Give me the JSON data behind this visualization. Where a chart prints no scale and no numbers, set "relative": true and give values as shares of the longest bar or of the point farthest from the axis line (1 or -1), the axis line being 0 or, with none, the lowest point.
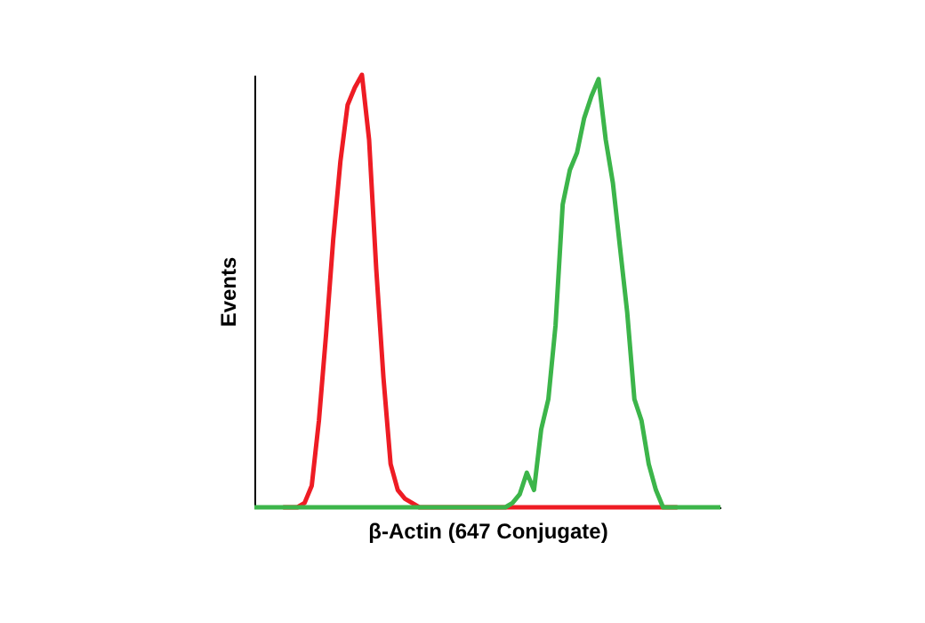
{
  "chart_data": {
    "type": "line",
    "relative": true,
    "xlabel": "β-Actin (647 Conjugate)",
    "ylabel": "Events",
    "tick_labels": false,
    "grid": false,
    "legend": false,
    "categories": [
      null,
      null,
      null,
      null,
      null,
      null,
      null,
      null,
      null,
      null,
      null,
      null,
      null,
      null,
      null,
      null,
      null,
      null,
      null,
      null,
      null,
      null,
      null,
      null,
      null,
      null,
      null,
      null,
      null,
      null,
      null,
      null,
      null,
      null,
      null,
      null,
      null,
      null,
      null,
      null,
      null,
      null,
      null,
      null,
      null,
      null,
      null,
      null,
      null,
      null,
      null,
      null,
      null,
      null,
      null,
      null,
      null,
      null,
      null,
      null,
      null,
      null,
      null,
      null,
      null,
      null
    ],
    "series": [
      {
        "color": "#ee1c24",
        "values": [
          null,
          null,
          null,
          null,
          0,
          0,
          0,
          0.01,
          0.05,
          0.2,
          0.4,
          0.62,
          0.8,
          0.93,
          0.97,
          1,
          0.85,
          0.55,
          0.3,
          0.1,
          0.04,
          0.02,
          0.01,
          0,
          0,
          0,
          0,
          0,
          0,
          0,
          0,
          0,
          0,
          0,
          0,
          0,
          0,
          0,
          0,
          0,
          0,
          0,
          0,
          0,
          0,
          0,
          0,
          0,
          0,
          0,
          0,
          0,
          0,
          0,
          0,
          0,
          0,
          0,
          0,
          0,
          null,
          null,
          null,
          null,
          null,
          null
        ]
      },
      {
        "color": "#3cb54a",
        "values": [
          0,
          0,
          0,
          0,
          0,
          0,
          0,
          0,
          0,
          0,
          0,
          0,
          0,
          0,
          0,
          0,
          0,
          0,
          0,
          0,
          0,
          0,
          0,
          0,
          0,
          0,
          0,
          0,
          0,
          0,
          0,
          0,
          0,
          0,
          0,
          0,
          0.01,
          0.03,
          0.08,
          0.04,
          0.18,
          0.25,
          0.42,
          0.7,
          0.78,
          0.82,
          0.9,
          0.95,
          0.99,
          0.85,
          0.75,
          0.6,
          0.45,
          0.25,
          0.2,
          0.1,
          0.04,
          0,
          0,
          0,
          0,
          0,
          0,
          0,
          0,
          0
        ]
      }
    ]
  }
}
